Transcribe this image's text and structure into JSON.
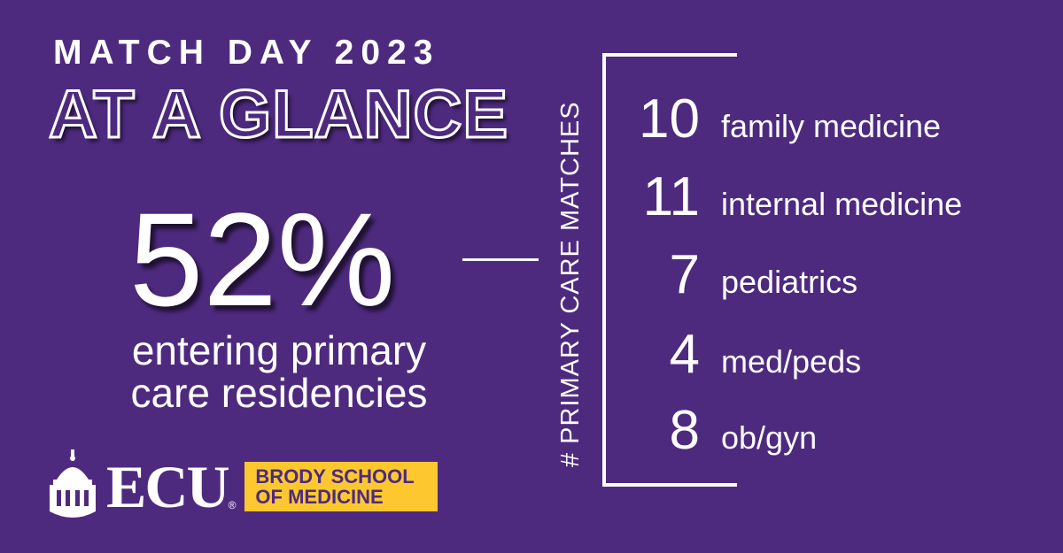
{
  "header": {
    "kicker": "MATCH DAY 2023",
    "headline": "AT A GLANCE"
  },
  "stat": {
    "value": "52%",
    "caption_line1": "entering primary",
    "caption_line2": "care residencies"
  },
  "matches": {
    "label": "# PRIMARY CARE MATCHES",
    "items": [
      {
        "count": "10",
        "specialty": "family medicine"
      },
      {
        "count": "11",
        "specialty": "internal medicine"
      },
      {
        "count": "7",
        "specialty": "pediatrics"
      },
      {
        "count": "4",
        "specialty": "med/peds"
      },
      {
        "count": "8",
        "specialty": "ob/gyn"
      }
    ]
  },
  "logo": {
    "wordmark": "ECU",
    "registered": "®",
    "school_line1": "BRODY SCHOOL",
    "school_line2": "OF MEDICINE"
  },
  "colors": {
    "background": "#4e2a7f",
    "accent_gold": "#fdc82f",
    "text": "#ffffff"
  }
}
